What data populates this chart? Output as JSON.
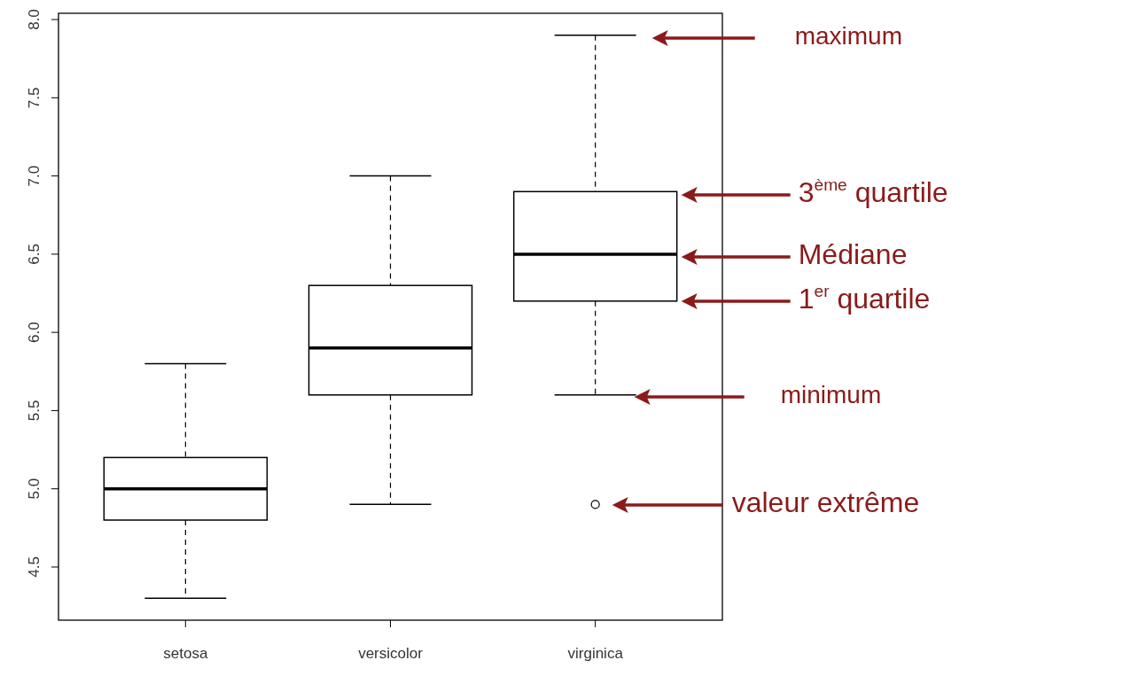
{
  "chart_data": {
    "type": "box",
    "categories": [
      "setosa",
      "versicolor",
      "virginica"
    ],
    "boxes": [
      {
        "low": 4.3,
        "q1": 4.8,
        "median": 5.0,
        "q3": 5.2,
        "high": 5.8
      },
      {
        "low": 4.9,
        "q1": 5.6,
        "median": 5.9,
        "q3": 6.3,
        "high": 7.0
      },
      {
        "low": 5.6,
        "q1": 6.2,
        "median": 6.5,
        "q3": 6.9,
        "high": 7.9,
        "outliers": [
          4.9
        ]
      }
    ],
    "ylim": [
      4.16,
      8.04
    ],
    "yticks": [
      4.5,
      {
        "value": 5,
        "label": "5.0"
      },
      5.5,
      {
        "value": 6,
        "label": "6.0"
      },
      6.5,
      {
        "value": 7,
        "label": "7.0"
      },
      7.5,
      {
        "value": 8,
        "label": "8.0"
      }
    ],
    "annotations": [
      "maximum",
      "3$^{ème}$ quartile",
      "Médiane",
      "1$^{er}$ quartile",
      "minimum",
      "valeur extrême"
    ]
  }
}
